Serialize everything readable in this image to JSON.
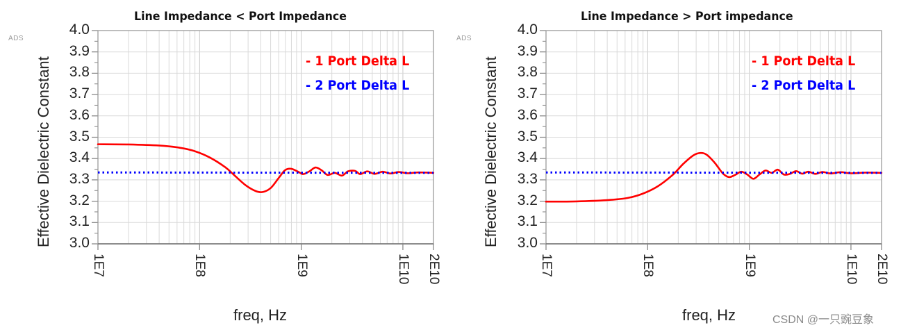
{
  "chart_data": [
    {
      "type": "line",
      "title": "Line Impedance < Port Impedance",
      "xlabel": "freq, Hz",
      "ylabel": "Effective Dielectric Constant",
      "xscale": "log",
      "xlim": [
        10000000.0,
        20000000000.0
      ],
      "ylim": [
        3.0,
        4.0
      ],
      "xticks": [
        "1E7",
        "1E8",
        "1E9",
        "1E10",
        "2E10"
      ],
      "yticks": [
        "4.0",
        "3.9",
        "3.8",
        "3.7",
        "3.6",
        "3.5",
        "3.4",
        "3.3",
        "3.2",
        "3.1",
        "3.0"
      ],
      "grid": true,
      "legend_position": "upper right",
      "watermark": "ADS",
      "series": [
        {
          "name": "- 1 Port Delta L",
          "color": "#ff0000",
          "style": "solid",
          "points_log10f_eps": [
            [
              7.0,
              3.467
            ],
            [
              7.3,
              3.466
            ],
            [
              7.6,
              3.461
            ],
            [
              7.8,
              3.451
            ],
            [
              7.95,
              3.435
            ],
            [
              8.1,
              3.405
            ],
            [
              8.25,
              3.36
            ],
            [
              8.35,
              3.318
            ],
            [
              8.45,
              3.276
            ],
            [
              8.55,
              3.248
            ],
            [
              8.62,
              3.243
            ],
            [
              8.7,
              3.262
            ],
            [
              8.78,
              3.31
            ],
            [
              8.84,
              3.345
            ],
            [
              8.9,
              3.352
            ],
            [
              8.97,
              3.338
            ],
            [
              9.02,
              3.327
            ],
            [
              9.08,
              3.34
            ],
            [
              9.14,
              3.358
            ],
            [
              9.2,
              3.345
            ],
            [
              9.26,
              3.323
            ],
            [
              9.33,
              3.333
            ],
            [
              9.4,
              3.32
            ],
            [
              9.46,
              3.34
            ],
            [
              9.53,
              3.342
            ],
            [
              9.58,
              3.327
            ],
            [
              9.65,
              3.34
            ],
            [
              9.72,
              3.328
            ],
            [
              9.8,
              3.338
            ],
            [
              9.88,
              3.33
            ],
            [
              9.96,
              3.337
            ],
            [
              10.05,
              3.331
            ],
            [
              10.15,
              3.335
            ],
            [
              10.3,
              3.333
            ]
          ]
        },
        {
          "name": "- 2 Port Delta L",
          "color": "#0000ff",
          "style": "dotted",
          "points_log10f_eps": [
            [
              7.0,
              3.335
            ],
            [
              10.3,
              3.333
            ]
          ]
        }
      ]
    },
    {
      "type": "line",
      "title": "Line Impedance > Port impedance",
      "xlabel": "freq, Hz",
      "ylabel": "Effective Dielectric Constant",
      "xscale": "log",
      "xlim": [
        10000000.0,
        20000000000.0
      ],
      "ylim": [
        3.0,
        4.0
      ],
      "xticks": [
        "1E7",
        "1E8",
        "1E9",
        "1E10",
        "2E10"
      ],
      "yticks": [
        "4.0",
        "3.9",
        "3.8",
        "3.7",
        "3.6",
        "3.5",
        "3.4",
        "3.3",
        "3.2",
        "3.1",
        "3.0"
      ],
      "grid": true,
      "legend_position": "upper right",
      "watermark": "ADS",
      "series": [
        {
          "name": "- 1 Port Delta L",
          "color": "#ff0000",
          "style": "solid",
          "points_log10f_eps": [
            [
              7.0,
              3.198
            ],
            [
              7.3,
              3.199
            ],
            [
              7.6,
              3.205
            ],
            [
              7.8,
              3.215
            ],
            [
              7.95,
              3.235
            ],
            [
              8.1,
              3.27
            ],
            [
              8.25,
              3.325
            ],
            [
              8.35,
              3.375
            ],
            [
              8.45,
              3.415
            ],
            [
              8.52,
              3.426
            ],
            [
              8.58,
              3.418
            ],
            [
              8.66,
              3.38
            ],
            [
              8.74,
              3.33
            ],
            [
              8.8,
              3.313
            ],
            [
              8.86,
              3.323
            ],
            [
              8.92,
              3.338
            ],
            [
              8.98,
              3.325
            ],
            [
              9.04,
              3.305
            ],
            [
              9.1,
              3.325
            ],
            [
              9.16,
              3.344
            ],
            [
              9.22,
              3.333
            ],
            [
              9.28,
              3.348
            ],
            [
              9.34,
              3.325
            ],
            [
              9.4,
              3.328
            ],
            [
              9.46,
              3.341
            ],
            [
              9.52,
              3.329
            ],
            [
              9.58,
              3.338
            ],
            [
              9.65,
              3.328
            ],
            [
              9.72,
              3.337
            ],
            [
              9.8,
              3.33
            ],
            [
              9.9,
              3.336
            ],
            [
              10.0,
              3.331
            ],
            [
              10.15,
              3.334
            ],
            [
              10.3,
              3.333
            ]
          ]
        },
        {
          "name": "- 2 Port Delta L",
          "color": "#0000ff",
          "style": "dotted",
          "points_log10f_eps": [
            [
              7.0,
              3.335
            ],
            [
              10.3,
              3.333
            ]
          ]
        }
      ]
    }
  ],
  "charts": [
    {
      "title": "Line Impedance < Port Impedance",
      "ads": "ADS",
      "ylabel": "Effective Dielectric Constant",
      "xlabel": "freq, Hz",
      "legend": [
        "- 1 Port Delta L",
        "- 2 Port Delta L"
      ]
    },
    {
      "title": "Line Impedance > Port impedance",
      "ads": "ADS",
      "ylabel": "Effective Dielectric Constant",
      "xlabel": "freq, Hz",
      "legend": [
        "- 1 Port Delta L",
        "- 2 Port Delta L"
      ]
    }
  ],
  "ytick_labels": [
    "4.0",
    "3.9",
    "3.8",
    "3.7",
    "3.6",
    "3.5",
    "3.4",
    "3.3",
    "3.2",
    "3.1",
    "3.0"
  ],
  "xtick_labels": [
    "1E7",
    "1E8",
    "1E9",
    "1E10",
    "2E10"
  ],
  "colors": {
    "series1": "#ff0000",
    "series2": "#0000ff",
    "grid": "#d9d9d9",
    "axis": "#808080"
  },
  "watermark": "CSDN @一只豌豆象"
}
